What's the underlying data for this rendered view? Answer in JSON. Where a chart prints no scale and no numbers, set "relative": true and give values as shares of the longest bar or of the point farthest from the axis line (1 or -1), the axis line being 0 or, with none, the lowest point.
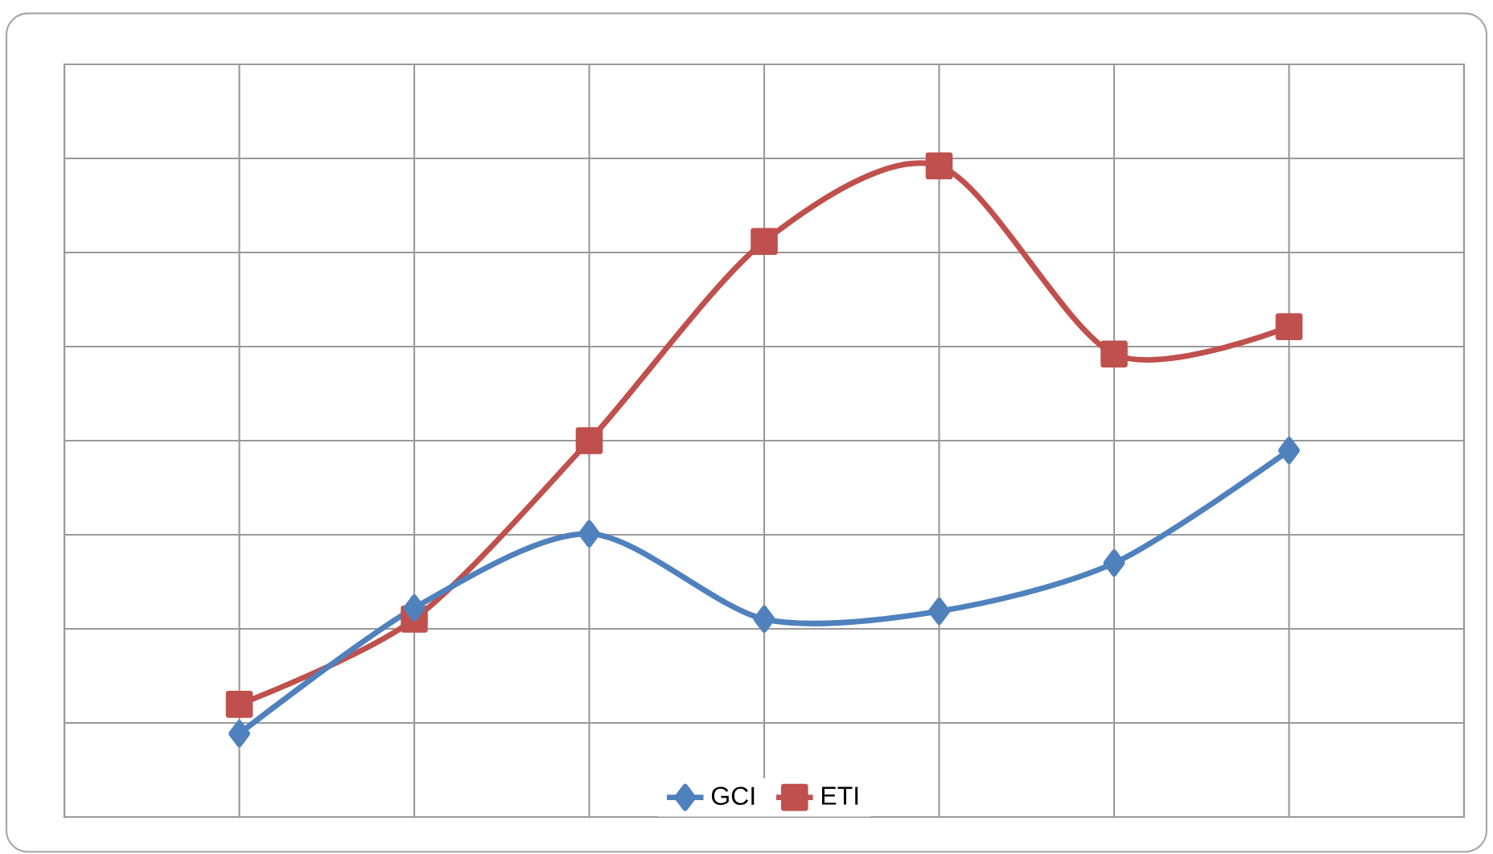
{
  "chart_data": {
    "type": "line",
    "relative": true,
    "categories": [
      null,
      null,
      null,
      null,
      null,
      null,
      null
    ],
    "grid": true,
    "legend": "bottom",
    "line_style": "solid",
    "series": [
      {
        "name": "GCI",
        "color": "#4f81bd",
        "marker": "diamond",
        "values": [
          0.128,
          0.321,
          0.435,
          0.304,
          0.316,
          0.39,
          0.563
        ]
      },
      {
        "name": "ETI",
        "color": "#c0504d",
        "marker": "square",
        "values": [
          0.173,
          0.304,
          0.578,
          0.884,
          1,
          0.711,
          0.753
        ]
      }
    ]
  }
}
